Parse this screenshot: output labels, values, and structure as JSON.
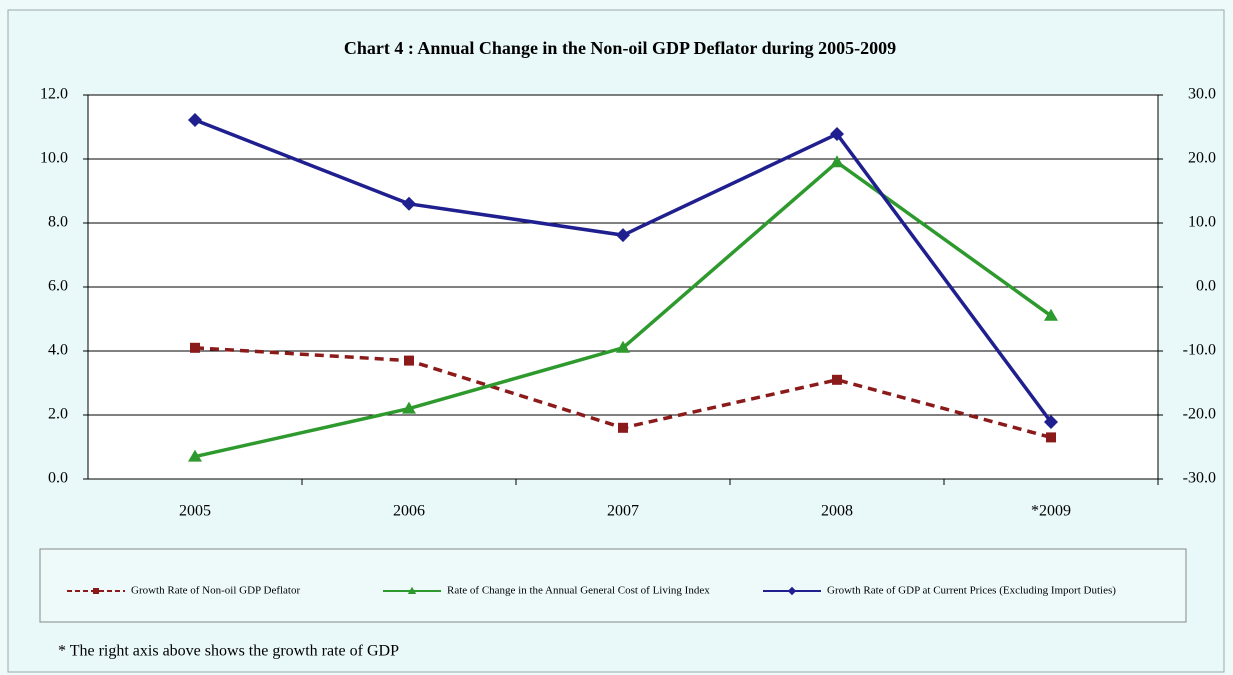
{
  "chart_data": {
    "type": "line",
    "title": "Chart 4 : Annual Change in the Non-oil GDP Deflator during 2005-2009",
    "footnote": "* The right axis above shows the growth rate of GDP",
    "categories": [
      "2005",
      "2006",
      "2007",
      "2008",
      "*2009"
    ],
    "ylim": [
      0,
      12
    ],
    "yticks": [
      {
        "value": 0,
        "label": "0.0"
      },
      {
        "value": 2,
        "label": "2.0"
      },
      {
        "value": 4,
        "label": "4.0"
      },
      {
        "value": 6,
        "label": "6.0"
      },
      {
        "value": 8,
        "label": "8.0"
      },
      {
        "value": 10,
        "label": "10.0"
      },
      {
        "value": 12,
        "label": "12.0"
      }
    ],
    "y2lim": [
      -30,
      30
    ],
    "y2ticks": [
      {
        "value": -30,
        "label": "-30.0"
      },
      {
        "value": -20,
        "label": "-20.0"
      },
      {
        "value": -10,
        "label": "-10.0"
      },
      {
        "value": 0,
        "label": "0.0"
      },
      {
        "value": 10,
        "label": "10.0"
      },
      {
        "value": 20,
        "label": "20.0"
      },
      {
        "value": 30,
        "label": "30.0"
      }
    ],
    "grid": true,
    "series": [
      {
        "name": "Growth Rate of Non-oil GDP Deflator",
        "color": "#8b1a1a",
        "dashed": true,
        "marker": "square",
        "values": [
          4.1,
          3.7,
          1.6,
          3.1,
          1.3
        ]
      },
      {
        "name": "Rate of Change in the Annual General Cost of Living Index",
        "color": "#2e9a2e",
        "dashed": false,
        "marker": "triangle",
        "values": [
          0.7,
          2.2,
          4.1,
          9.9,
          5.1
        ]
      },
      {
        "name": "Growth Rate of GDP at Current Prices (Excluding Import Duties)",
        "color": "#1f1f8f",
        "dashed": false,
        "marker": "diamond",
        "axis": "y2",
        "values": [
          26.1,
          13.0,
          8.1,
          23.9,
          -21.1
        ]
      }
    ]
  }
}
